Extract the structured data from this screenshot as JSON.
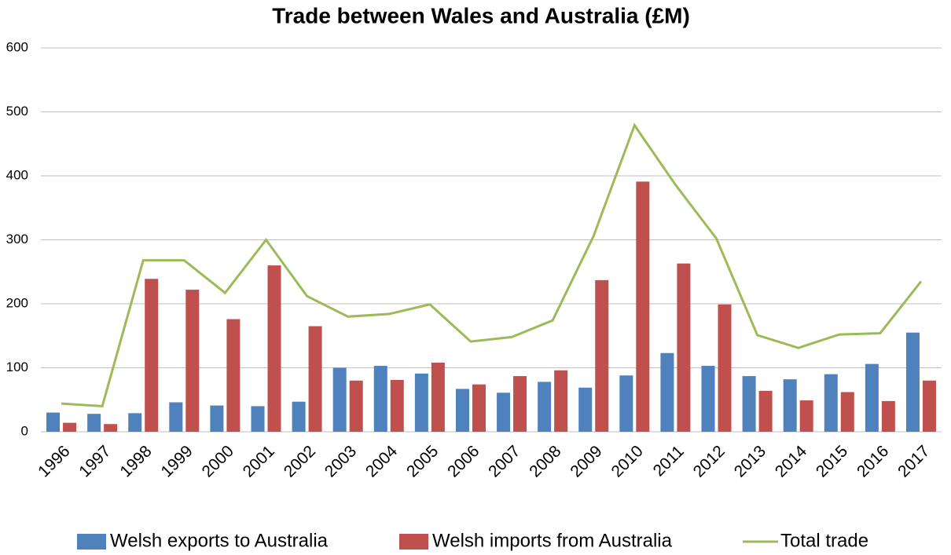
{
  "chart_data": {
    "type": "bar",
    "title": "Trade between Wales and Australia (£M)",
    "categories": [
      "1996",
      "1997",
      "1998",
      "1999",
      "2000",
      "2001",
      "2002",
      "2003",
      "2004",
      "2005",
      "2006",
      "2007",
      "2008",
      "2009",
      "2010",
      "2011",
      "2012",
      "2013",
      "2014",
      "2015",
      "2016",
      "2017"
    ],
    "series": [
      {
        "name": "Welsh exports to Australia",
        "color": "#4f81bd",
        "type": "bar",
        "values": [
          30,
          28,
          29,
          46,
          41,
          40,
          47,
          100,
          103,
          91,
          67,
          61,
          78,
          69,
          88,
          123,
          103,
          87,
          82,
          90,
          106,
          155
        ]
      },
      {
        "name": "Welsh imports from Australia",
        "color": "#c0504d",
        "type": "bar",
        "values": [
          14,
          12,
          239,
          222,
          176,
          260,
          165,
          80,
          81,
          108,
          74,
          87,
          96,
          237,
          391,
          263,
          199,
          64,
          49,
          62,
          48,
          80
        ]
      },
      {
        "name": "Total trade",
        "color": "#9bbb59",
        "type": "line",
        "values": [
          44,
          40,
          268,
          268,
          217,
          300,
          212,
          180,
          184,
          199,
          141,
          148,
          174,
          306,
          479,
          386,
          302,
          151,
          131,
          152,
          154,
          235
        ]
      }
    ],
    "ylim": [
      0,
      600
    ],
    "yticks": [
      0,
      100,
      200,
      300,
      400,
      500,
      600
    ],
    "grid": true,
    "legend": "bottom"
  }
}
